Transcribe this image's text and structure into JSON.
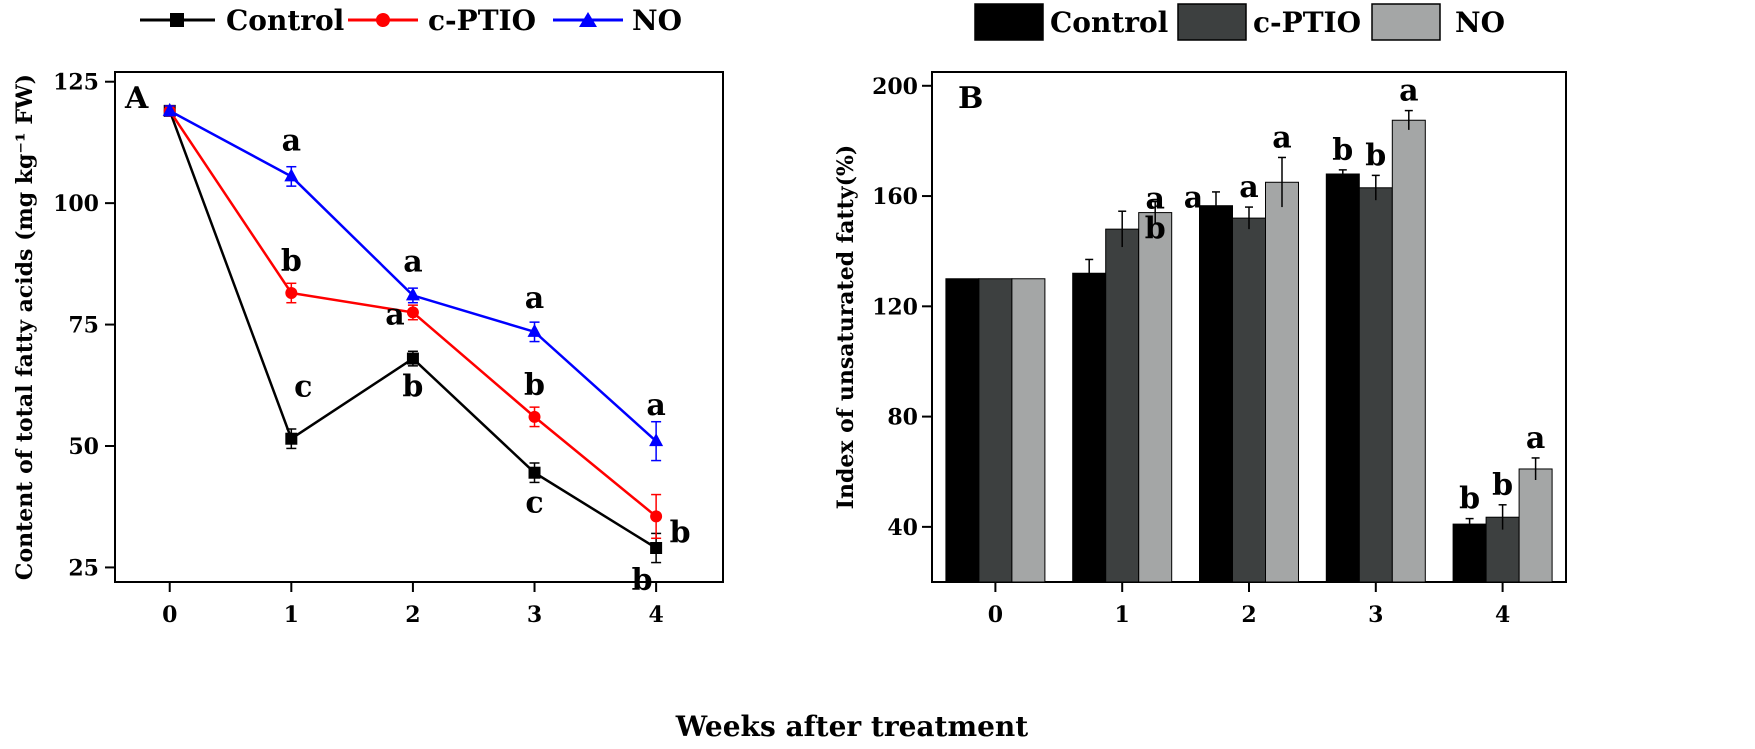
{
  "figure": {
    "shared_xlabel": "Weeks after treatment"
  },
  "colors": {
    "line_control": "#000000",
    "line_cptio": "#ff0000",
    "line_no": "#0000ff",
    "bar_control": "#000000",
    "bar_cptio": "#3d4040",
    "bar_no": "#a4a6a6"
  },
  "chart_data": [
    {
      "type": "line",
      "panel_label": "A",
      "title": "",
      "xlabel": "Weeks after treatment",
      "ylabel": "Content of total fatty acids (mg kg⁻¹ FW)",
      "x": [
        0,
        1,
        2,
        3,
        4
      ],
      "xlim": [
        -0.45,
        4.55
      ],
      "ylim": [
        22,
        127
      ],
      "yticks": [
        25,
        50,
        75,
        100,
        125
      ],
      "xticks": [
        0,
        1,
        2,
        3,
        4
      ],
      "legend": [
        "Control",
        "c-PTIO",
        "NO"
      ],
      "legend_position": "above",
      "series": [
        {
          "name": "Control",
          "marker": "square",
          "values": [
            119,
            51.5,
            68,
            44.5,
            29
          ],
          "errors": [
            1,
            2,
            1.5,
            2,
            3
          ],
          "letters": [
            "",
            "c",
            "b",
            "c",
            "b"
          ]
        },
        {
          "name": "c-PTIO",
          "marker": "circle",
          "values": [
            119,
            81.5,
            77.5,
            56,
            35.5
          ],
          "errors": [
            1,
            2,
            1.5,
            2,
            4.5
          ],
          "letters": [
            "",
            "b",
            "a",
            "b",
            "b"
          ]
        },
        {
          "name": "NO",
          "marker": "triangle",
          "values": [
            119,
            105.5,
            81,
            73.5,
            51
          ],
          "errors": [
            1,
            2,
            1.5,
            2,
            4
          ],
          "letters": [
            "",
            "a",
            "a",
            "a",
            "a"
          ]
        }
      ]
    },
    {
      "type": "bar",
      "panel_label": "B",
      "title": "",
      "xlabel": "Weeks after treatment",
      "ylabel": "Index of unsaturated fatty(%)",
      "categories": [
        "0",
        "1",
        "2",
        "3",
        "4"
      ],
      "ylim": [
        20,
        205
      ],
      "yticks": [
        40,
        80,
        120,
        160,
        200
      ],
      "legend": [
        "Control",
        "c-PTIO",
        "NO"
      ],
      "legend_position": "above",
      "series": [
        {
          "name": "Control",
          "values": [
            130,
            132,
            156.5,
            168,
            41
          ],
          "errors": [
            0,
            5,
            5,
            1.5,
            2
          ],
          "letters": [
            "",
            "",
            "a",
            "b",
            "b"
          ]
        },
        {
          "name": "c-PTIO",
          "values": [
            130,
            148,
            152,
            163,
            43.5
          ],
          "errors": [
            0,
            6.5,
            4,
            4.5,
            4.5
          ],
          "letters": [
            "",
            "",
            "a",
            "b",
            "b"
          ]
        },
        {
          "name": "NO",
          "values": [
            130,
            154,
            165,
            187.5,
            61
          ],
          "errors": [
            0,
            4,
            9,
            3.5,
            4
          ],
          "letters": [
            "",
            "a b",
            "a",
            "a",
            "a"
          ]
        }
      ]
    }
  ]
}
